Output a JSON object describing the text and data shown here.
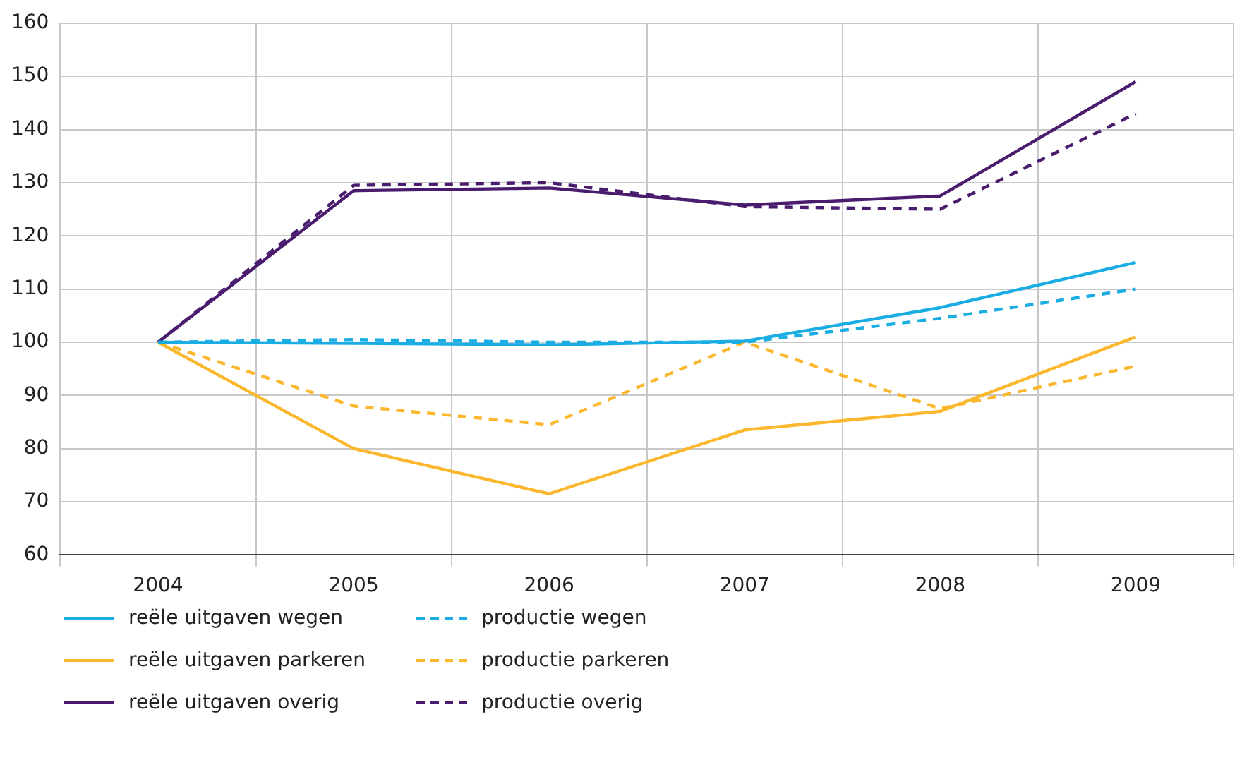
{
  "chart_data": {
    "type": "line",
    "categories": [
      "2004",
      "2005",
      "2006",
      "2007",
      "2008",
      "2009"
    ],
    "ylim": [
      60,
      160
    ],
    "yticks": [
      60,
      70,
      80,
      90,
      100,
      110,
      120,
      130,
      140,
      150,
      160
    ],
    "grid": true,
    "legend": "bottom",
    "marker": "none",
    "series": [
      {
        "name": "reële uitgaven  wegen",
        "color": "#1aade4",
        "line_style": "solid",
        "values": [
          100,
          99.8,
          99.5,
          100.2,
          106.5,
          115
        ]
      },
      {
        "name": "productie wegen",
        "color": "#1aade4",
        "line_style": "dashed",
        "values": [
          100,
          100.5,
          100,
          100,
          104.5,
          110
        ]
      },
      {
        "name": "reële uitgaven parkeren",
        "color": "#fbb82e",
        "line_style": "solid",
        "values": [
          100,
          80,
          71.5,
          83.5,
          87,
          101
        ]
      },
      {
        "name": "productie parkeren",
        "color": "#fbb82e",
        "line_style": "dashed",
        "values": [
          100,
          88,
          84.5,
          100,
          87.5,
          95.5
        ]
      },
      {
        "name": "reële uitgaven overig",
        "color": "#4a1c6e",
        "line_style": "solid",
        "values": [
          100,
          128.5,
          129,
          125.8,
          127.5,
          149
        ]
      },
      {
        "name": "productie overig",
        "color": "#4a1c6e",
        "line_style": "dashed",
        "values": [
          100,
          129.5,
          130,
          125.5,
          125,
          143
        ]
      }
    ]
  }
}
